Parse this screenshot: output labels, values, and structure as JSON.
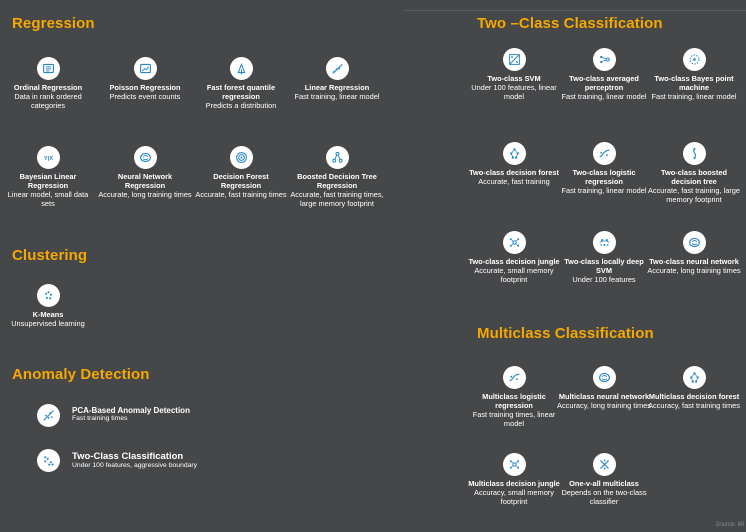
{
  "sections": {
    "regression": "Regression",
    "clustering": "Clustering",
    "anomaly": "Anomaly Detection",
    "two_class": "Two –Class Classification",
    "multiclass": "Multiclass Classification"
  },
  "regression": [
    {
      "name": "Ordinal Regression",
      "desc": "Data in rank ordered categories",
      "icon": "table-icon"
    },
    {
      "name": "Poisson Regression",
      "desc": "Predicts event counts",
      "icon": "chart-card-icon"
    },
    {
      "name": "Fast forest quantile regression",
      "desc": "Predicts a distribution",
      "icon": "forest-icon"
    },
    {
      "name": "Linear Regression",
      "desc": "Fast training, linear model",
      "icon": "trend-line-icon"
    },
    {
      "name": "Bayesian Linear Regression",
      "desc": "Linear model, small data sets",
      "icon": "bayes-icon"
    },
    {
      "name": "Neural Network Regression",
      "desc": "Accurate, long training times",
      "icon": "brain-icon"
    },
    {
      "name": "Decision Forest Regression",
      "desc": "Accurate, fast training times",
      "icon": "target-icon"
    },
    {
      "name": "Boosted Decision Tree Regression",
      "desc": "Accurate, fast training times, large memory footprint",
      "icon": "tree-icon"
    }
  ],
  "clustering": [
    {
      "name": "K-Means",
      "desc": "Unsupervised learning",
      "icon": "cluster-icon"
    }
  ],
  "anomaly": [
    {
      "name": "PCA-Based Anomaly Detection",
      "desc": "Fast training times",
      "icon": "pca-icon"
    },
    {
      "name": "Two-Class Classification",
      "desc": "Under 100 features, aggressive boundary",
      "icon": "scatter-icon"
    }
  ],
  "two_class": [
    {
      "name": "Two-class SVM",
      "desc": "Under 100 features, linear model",
      "icon": "svm-icon"
    },
    {
      "name": "Two-class averaged perceptron",
      "desc": "Fast training, linear model",
      "icon": "perceptron-icon"
    },
    {
      "name": "Two-class Bayes point machine",
      "desc": "Fast training, linear model",
      "icon": "bayes-point-icon"
    },
    {
      "name": "Two-class decision forest",
      "desc": "Accurate, fast training",
      "icon": "forest-dots-icon"
    },
    {
      "name": "Two-class logistic regression",
      "desc": "Fast training, linear model",
      "icon": "logistic-icon"
    },
    {
      "name": "Two-class boosted decision tree",
      "desc": "Accurate, fast training, large memory footprint",
      "icon": "boosted-tree-icon"
    },
    {
      "name": "Two-class decision jungle",
      "desc": "Accurate, small memory footprint",
      "icon": "jungle-icon"
    },
    {
      "name": "Two-class locally deep SVM",
      "desc": "Under 100 features",
      "icon": "deep-svm-icon"
    },
    {
      "name": "Two-class neural network",
      "desc": "Accurate, long training times",
      "icon": "brain-icon"
    }
  ],
  "multiclass": [
    {
      "name": "Multiclass logistic regression",
      "desc": "Fast training times, linear model",
      "icon": "logistic-icon"
    },
    {
      "name": "Multiclass neural network",
      "desc": "Accuracy, long training times",
      "icon": "brain-icon"
    },
    {
      "name": "Multiclass decision forest",
      "desc": "Accuracy, fast training times",
      "icon": "forest-dots-icon"
    },
    {
      "name": "Multiclass decision jungle",
      "desc": "Accuracy, small memory footprint",
      "icon": "jungle-icon"
    },
    {
      "name": "One-v-all multiclass",
      "desc": "Depends on the two-class classifier",
      "icon": "one-vs-all-icon"
    }
  ],
  "source_note": "Source: Mi",
  "colors": {
    "background": "#464749",
    "heading": "#f5a800",
    "icon_fg": "#2b86c5",
    "icon_bg": "#ffffff"
  }
}
